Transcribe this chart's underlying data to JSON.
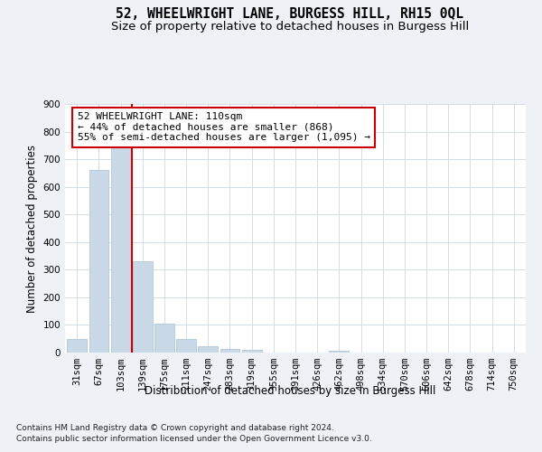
{
  "title": "52, WHEELWRIGHT LANE, BURGESS HILL, RH15 0QL",
  "subtitle": "Size of property relative to detached houses in Burgess Hill",
  "xlabel": "Distribution of detached houses by size in Burgess Hill",
  "ylabel": "Number of detached properties",
  "footer_line1": "Contains HM Land Registry data © Crown copyright and database right 2024.",
  "footer_line2": "Contains public sector information licensed under the Open Government Licence v3.0.",
  "property_label": "52 WHEELWRIGHT LANE: 110sqm",
  "pct_smaller": 44,
  "pct_smaller_n": 868,
  "pct_larger_semi": 55,
  "pct_larger_semi_n": "1,095",
  "bar_categories": [
    "31sqm",
    "67sqm",
    "103sqm",
    "139sqm",
    "175sqm",
    "211sqm",
    "247sqm",
    "283sqm",
    "319sqm",
    "355sqm",
    "391sqm",
    "426sqm",
    "462sqm",
    "498sqm",
    "534sqm",
    "570sqm",
    "606sqm",
    "642sqm",
    "678sqm",
    "714sqm",
    "750sqm"
  ],
  "bar_values": [
    48,
    660,
    750,
    330,
    105,
    48,
    22,
    14,
    10,
    0,
    0,
    0,
    8,
    0,
    0,
    0,
    0,
    0,
    0,
    0,
    0
  ],
  "bar_color": "#c9d9e8",
  "bar_edge_color": "#a8bfcf",
  "vline_bin_index": 2,
  "vline_color": "#cc0000",
  "ylim": [
    0,
    900
  ],
  "yticks": [
    0,
    100,
    200,
    300,
    400,
    500,
    600,
    700,
    800,
    900
  ],
  "bg_color": "#eef2f7",
  "plot_bg_color": "#ffffff",
  "grid_color": "#ccd8e4",
  "annotation_box_color": "#cc0000",
  "title_fontsize": 10.5,
  "subtitle_fontsize": 9.5,
  "axis_label_fontsize": 8.5,
  "tick_fontsize": 7.5,
  "annotation_fontsize": 8,
  "footer_fontsize": 6.5
}
